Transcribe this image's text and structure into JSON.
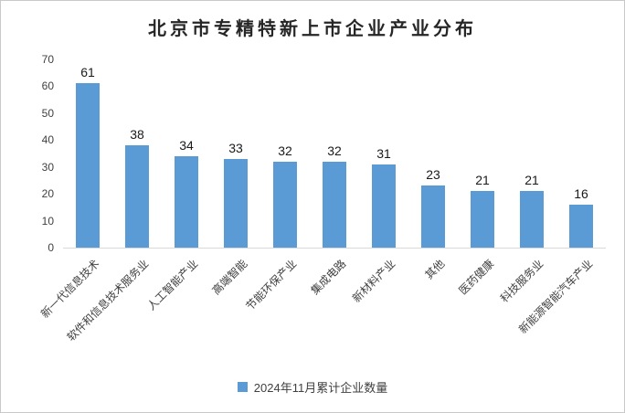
{
  "title": "北京市专精特新上市企业产业分布",
  "legend": {
    "label": "2024年11月累计企业数量",
    "marker_color": "#5B9BD5"
  },
  "colors": {
    "bar": "#5B9BD5",
    "axis_line": "#d9d9d9",
    "title_text": "#262626",
    "tick_text": "#404040",
    "data_label_text": "#1a1a1a"
  },
  "chart_data": {
    "type": "bar",
    "title": "北京市专精特新上市企业产业分布",
    "categories": [
      "新一代信息技术",
      "软件和信息技术服务业",
      "人工智能产业",
      "高端智能",
      "节能环保产业",
      "集成电路",
      "新材料产业",
      "其他",
      "医药健康",
      "科技服务业",
      "新能源智能汽车产业"
    ],
    "values": [
      61,
      38,
      34,
      33,
      32,
      32,
      31,
      23,
      21,
      21,
      16
    ],
    "series_name": "2024年11月累计企业数量",
    "xlabel": "",
    "ylabel": "",
    "ylim": [
      0,
      70
    ],
    "yticks": [
      0,
      10,
      20,
      30,
      40,
      50,
      60,
      70
    ],
    "grid": false,
    "data_labels": true,
    "legend_position": "bottom",
    "bar_color": "#5B9BD5"
  }
}
